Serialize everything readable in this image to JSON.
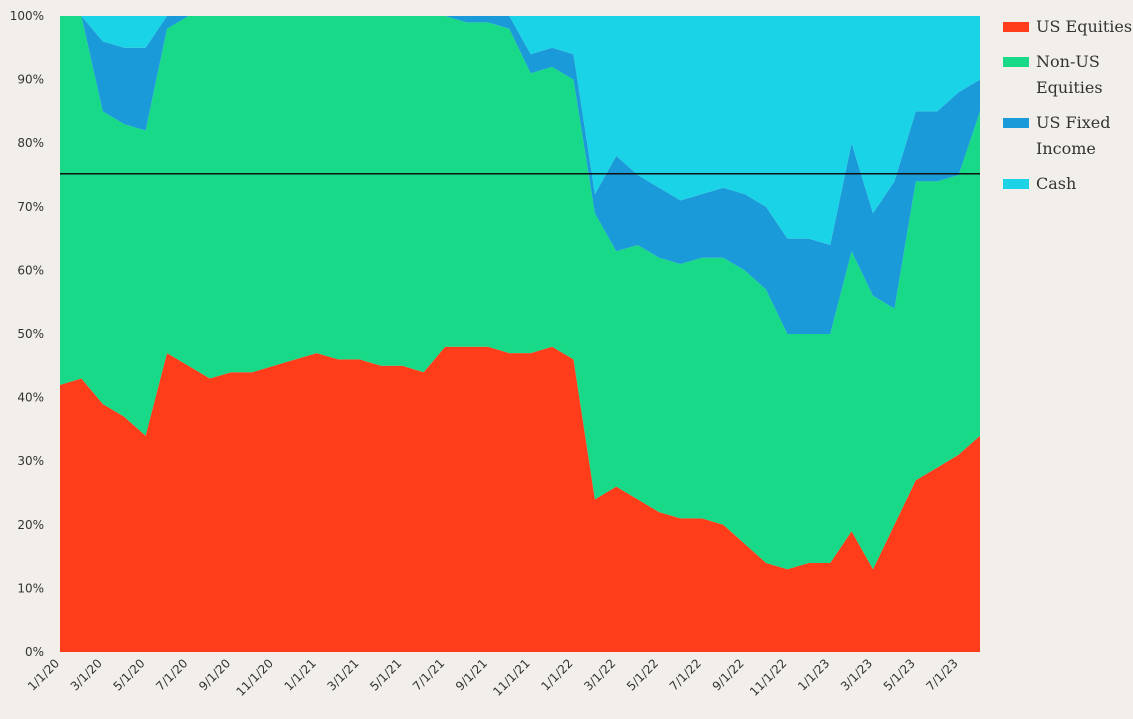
{
  "chart_data": {
    "type": "area",
    "stacked": true,
    "normalized": true,
    "x": [
      "1/1/20",
      "2/1/20",
      "3/1/20",
      "4/1/20",
      "5/1/20",
      "6/1/20",
      "7/1/20",
      "8/1/20",
      "9/1/20",
      "10/1/20",
      "11/1/20",
      "12/1/20",
      "1/1/21",
      "2/1/21",
      "3/1/21",
      "4/1/21",
      "5/1/21",
      "6/1/21",
      "7/1/21",
      "8/1/21",
      "9/1/21",
      "10/1/21",
      "11/1/21",
      "12/1/21",
      "1/1/22",
      "2/1/22",
      "3/1/22",
      "4/1/22",
      "5/1/22",
      "6/1/22",
      "7/1/22",
      "8/1/22",
      "9/1/22",
      "10/1/22",
      "11/1/22",
      "12/1/22",
      "1/1/23",
      "2/1/23",
      "3/1/23",
      "4/1/23",
      "5/1/23",
      "6/1/23",
      "7/1/23",
      "8/1/23"
    ],
    "x_tick_labels": [
      "1/1/20",
      "3/1/20",
      "5/1/20",
      "7/1/20",
      "9/1/20",
      "11/1/20",
      "1/1/21",
      "3/1/21",
      "5/1/21",
      "7/1/21",
      "9/1/21",
      "11/1/21",
      "1/1/22",
      "3/1/22",
      "5/1/22",
      "7/1/22",
      "9/1/22",
      "11/1/22",
      "1/1/23",
      "3/1/23",
      "5/1/23",
      "7/1/23"
    ],
    "y_tick_labels": [
      "0%",
      "10%",
      "20%",
      "30%",
      "40%",
      "50%",
      "60%",
      "70%",
      "80%",
      "90%",
      "100%"
    ],
    "ylim": [
      0,
      100
    ],
    "series": [
      {
        "name": "US Equities",
        "color": "#ff3d1a",
        "values": [
          42,
          43,
          39,
          37,
          34,
          47,
          45,
          43,
          44,
          44,
          45,
          46,
          47,
          46,
          46,
          45,
          45,
          44,
          48,
          48,
          48,
          47,
          47,
          48,
          46,
          24,
          26,
          24,
          22,
          21,
          21,
          20,
          17,
          14,
          13,
          14,
          14,
          19,
          13,
          20,
          27,
          29,
          31,
          34
        ]
      },
      {
        "name": "Non-US Equities",
        "color": "#17d987",
        "values": [
          58,
          57,
          46,
          46,
          48,
          51,
          55,
          57,
          56,
          56,
          55,
          54,
          53,
          54,
          54,
          55,
          55,
          56,
          52,
          51,
          51,
          51,
          44,
          44,
          44,
          45,
          37,
          40,
          40,
          40,
          41,
          42,
          43,
          43,
          37,
          36,
          36,
          44,
          43,
          34,
          47,
          45,
          44,
          51
        ]
      },
      {
        "name": "US Fixed Income",
        "color": "#1a9ad9",
        "values": [
          0,
          0,
          11,
          12,
          13,
          2,
          0,
          0,
          0,
          0,
          0,
          0,
          0,
          0,
          0,
          0,
          0,
          0,
          0,
          1,
          1,
          2,
          3,
          3,
          4,
          3,
          15,
          11,
          11,
          10,
          10,
          11,
          12,
          13,
          15,
          15,
          14,
          17,
          13,
          20,
          11,
          11,
          13,
          5
        ]
      },
      {
        "name": "Cash",
        "color": "#1ad3e6",
        "values": [
          0,
          0,
          4,
          5,
          5,
          0,
          0,
          0,
          0,
          0,
          0,
          0,
          0,
          0,
          0,
          0,
          0,
          0,
          0,
          0,
          0,
          0,
          6,
          5,
          6,
          28,
          22,
          25,
          27,
          29,
          28,
          27,
          28,
          30,
          35,
          35,
          36,
          20,
          31,
          26,
          15,
          15,
          12,
          10
        ]
      }
    ],
    "reference_line_y": 75.2,
    "legend_position": "right",
    "grid": false
  }
}
